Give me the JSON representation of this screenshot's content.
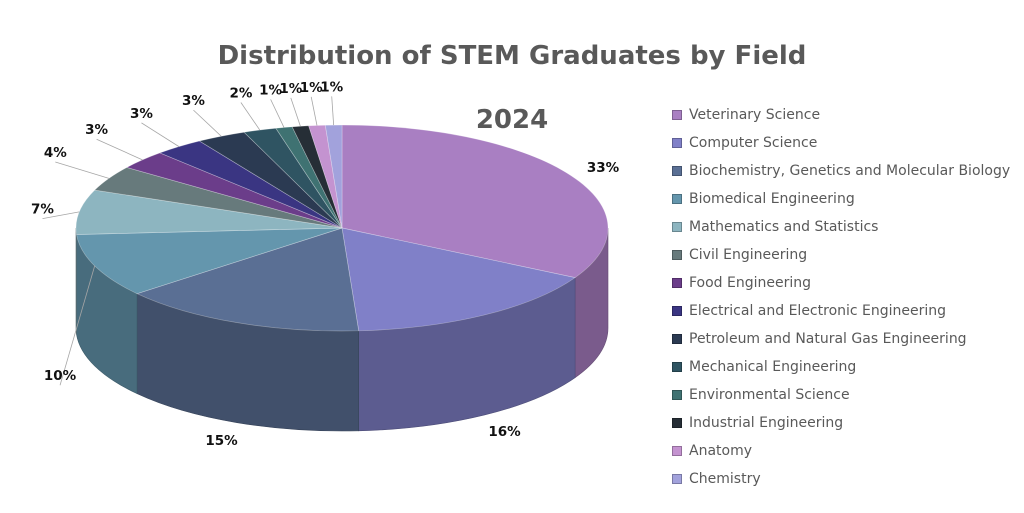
{
  "chart_data": {
    "type": "pie",
    "title": "Distribution of STEM Graduates by Field",
    "subtitle": "2024",
    "legend_position": "right",
    "categories": [
      "Veterinary Science",
      "Computer Science",
      "Biochemistry, Genetics and Molecular Biology",
      "Biomedical Engineering",
      "Mathematics and Statistics",
      "Civil Engineering",
      "Food Engineering",
      "Electrical and Electronic Engineering",
      "Petroleum and Natural Gas Engineering",
      "Mechanical Engineering",
      "Environmental Science",
      "Industrial Engineering",
      "Anatomy",
      "Chemistry"
    ],
    "values": [
      33,
      16,
      15,
      10,
      7,
      4,
      3,
      3,
      3,
      2,
      1,
      1,
      1,
      1
    ],
    "data_labels": [
      "33%",
      "16%",
      "15%",
      "10%",
      "7%",
      "4%",
      "3%",
      "3%",
      "3%",
      "2%",
      "1%",
      "1%",
      "1%",
      "1%"
    ],
    "colors": [
      "#a97fc2",
      "#8080c8",
      "#5a6f94",
      "#6496ad",
      "#8db5c0",
      "#677a7c",
      "#6b3d8a",
      "#3a3582",
      "#2b3a52",
      "#2f5462",
      "#3f7272",
      "#262e36",
      "#c493d0",
      "#a2a2dc"
    ]
  }
}
